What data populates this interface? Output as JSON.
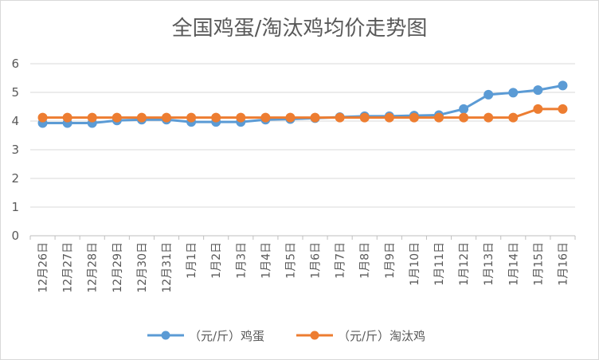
{
  "chart_data": {
    "type": "line",
    "title": "全国鸡蛋/淘汰鸡均价走势图",
    "xlabel": "",
    "ylabel": "",
    "ylim": [
      0,
      6
    ],
    "yticks": [
      "0",
      "1",
      "2",
      "3",
      "4",
      "5",
      "6"
    ],
    "grid": true,
    "legend_position": "bottom",
    "categories": [
      "12月26日",
      "12月27日",
      "12月28日",
      "12月29日",
      "12月30日",
      "12月31日",
      "1月1日",
      "1月2日",
      "1月3日",
      "1月4日",
      "1月5日",
      "1月6日",
      "1月7日",
      "1月8日",
      "1月9日",
      "1月10日",
      "1月11日",
      "1月12日",
      "1月13日",
      "1月14日",
      "1月15日",
      "1月16日"
    ],
    "series": [
      {
        "name": "（元/斤）鸡蛋",
        "color": "#5b9bd5",
        "values": [
          3.93,
          3.93,
          3.93,
          4.02,
          4.05,
          4.05,
          3.97,
          3.97,
          3.97,
          4.05,
          4.07,
          4.1,
          4.14,
          4.17,
          4.17,
          4.19,
          4.21,
          4.42,
          4.92,
          4.99,
          5.08,
          5.24
        ]
      },
      {
        "name": "（元/斤）淘汰鸡",
        "color": "#ed7d31",
        "values": [
          4.12,
          4.12,
          4.12,
          4.12,
          4.12,
          4.12,
          4.12,
          4.12,
          4.12,
          4.12,
          4.12,
          4.12,
          4.12,
          4.12,
          4.12,
          4.12,
          4.12,
          4.12,
          4.12,
          4.12,
          4.42,
          4.42
        ]
      }
    ]
  }
}
